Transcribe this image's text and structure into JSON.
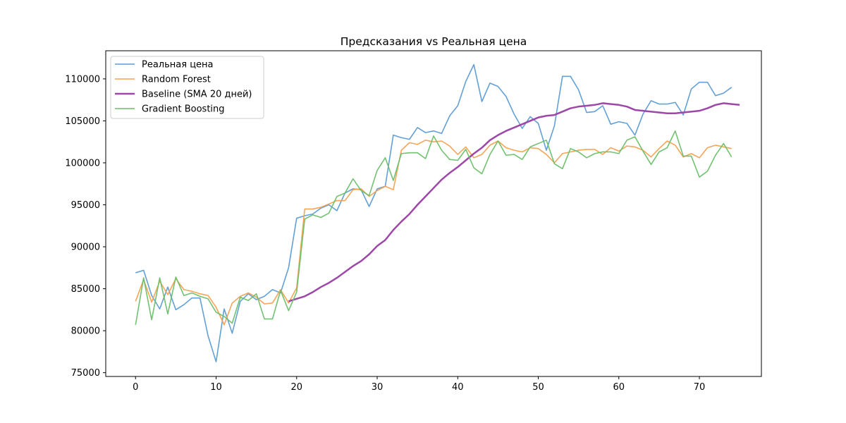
{
  "chart_data": {
    "type": "line",
    "title": "Предсказания vs Реальная цена",
    "xlabel": "",
    "ylabel": "",
    "xlim": [
      -3.7,
      77.7
    ],
    "ylim": [
      74550,
      113350
    ],
    "xticks": [
      0,
      10,
      20,
      30,
      40,
      50,
      60,
      70
    ],
    "yticks": [
      75000,
      80000,
      85000,
      90000,
      95000,
      100000,
      105000,
      110000
    ],
    "grid": false,
    "legend_position": "top-left",
    "series": [
      {
        "name": "Реальная цена",
        "color": "#5b9bd5",
        "x_start": 0,
        "values": [
          86900,
          87200,
          84200,
          82600,
          85200,
          82500,
          83100,
          83900,
          83900,
          79400,
          76300,
          82600,
          79700,
          83500,
          84400,
          83700,
          84100,
          84900,
          84500,
          87500,
          93400,
          93700,
          93900,
          94600,
          95000,
          94300,
          96400,
          96900,
          96800,
          94800,
          96900,
          97200,
          103300,
          103000,
          102800,
          104200,
          103600,
          103800,
          103500,
          105600,
          106800,
          109700,
          111700,
          107300,
          109500,
          109100,
          107900,
          105800,
          104100,
          105500,
          104700,
          101500,
          104400,
          110300,
          110300,
          108700,
          106000,
          106100,
          106800,
          104600,
          104900,
          104700,
          103300,
          105800,
          107400,
          107000,
          107000,
          107200,
          105700,
          108800,
          109600,
          109600,
          108000,
          108300,
          109000
        ]
      },
      {
        "name": "Random Forest",
        "color": "#f5a04f",
        "x_start": 0,
        "values": [
          83500,
          86100,
          83400,
          85900,
          84300,
          86200,
          84900,
          84700,
          84400,
          84200,
          82800,
          80700,
          83300,
          84100,
          84500,
          84000,
          83200,
          83300,
          84900,
          83300,
          85100,
          94500,
          94500,
          94700,
          95100,
          95500,
          95500,
          96800,
          96900,
          96000,
          96700,
          97200,
          96800,
          101500,
          102400,
          102200,
          102700,
          102500,
          102600,
          102000,
          101000,
          101900,
          100600,
          101000,
          102100,
          102600,
          101800,
          101500,
          101300,
          101800,
          101700,
          101000,
          100000,
          101100,
          101300,
          101500,
          101600,
          101600,
          101000,
          101800,
          101400,
          102000,
          101900,
          101500,
          100700,
          101700,
          102600,
          102100,
          100700,
          101100,
          100600,
          101800,
          102100,
          101900,
          101700
        ]
      },
      {
        "name": "Baseline (SMA 20 дней)",
        "color": "#9d48a8",
        "x_start": 19,
        "values": [
          83500,
          83800,
          84100,
          84600,
          85200,
          85700,
          86300,
          87000,
          87700,
          88300,
          89100,
          90100,
          90800,
          92000,
          93000,
          93900,
          95000,
          96000,
          97000,
          98000,
          98800,
          99500,
          100300,
          101100,
          101800,
          102700,
          103300,
          103800,
          104200,
          104600,
          105000,
          105400,
          105600,
          105700,
          106100,
          106500,
          106700,
          106800,
          106900,
          107100,
          107000,
          106900,
          106700,
          106300,
          106200,
          106100,
          106000,
          105900,
          105900,
          106000,
          106100,
          106200,
          106500,
          106900,
          107100,
          107000,
          106900
        ]
      },
      {
        "name": "Gradient Boosting",
        "color": "#6abf69",
        "x_start": 0,
        "values": [
          80700,
          86300,
          81300,
          86300,
          82000,
          86400,
          84200,
          84500,
          84100,
          83800,
          82200,
          81700,
          80900,
          84000,
          83600,
          84400,
          81400,
          81400,
          84800,
          82400,
          84600,
          93300,
          93800,
          93500,
          94000,
          96000,
          96400,
          98100,
          96700,
          96100,
          99100,
          100600,
          97900,
          101100,
          101200,
          101200,
          100500,
          103200,
          101500,
          100400,
          100300,
          101600,
          99400,
          98700,
          101000,
          102600,
          100900,
          101000,
          100400,
          101900,
          102300,
          102700,
          99900,
          99300,
          101700,
          101300,
          100600,
          101100,
          101300,
          101300,
          101100,
          102700,
          103100,
          101400,
          99800,
          101300,
          101800,
          103800,
          100800,
          100800,
          98300,
          99000,
          100900,
          102300,
          100700
        ]
      }
    ]
  }
}
